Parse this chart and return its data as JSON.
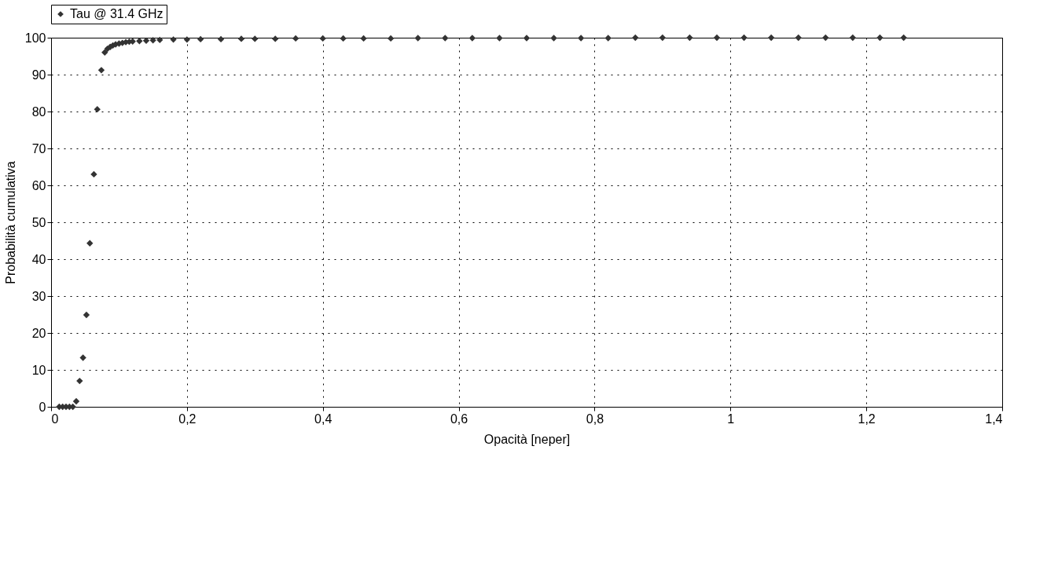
{
  "chart_data": {
    "type": "scatter",
    "xlabel": "Opacità [neper]",
    "ylabel": "Probabilità cumulativa",
    "xlim": [
      0,
      1.4
    ],
    "ylim": [
      0,
      100
    ],
    "xticks": [
      0,
      {
        "value": 0.2,
        "label": "0,2"
      },
      {
        "value": 0.4,
        "label": "0,4"
      },
      {
        "value": 0.6,
        "label": "0,6"
      },
      {
        "value": 0.8,
        "label": "0,8"
      },
      1,
      {
        "value": 1.2,
        "label": "1,2"
      },
      {
        "value": 1.4,
        "label": "1,4"
      }
    ],
    "yticks": [
      0,
      10,
      20,
      30,
      40,
      50,
      60,
      70,
      80,
      90,
      100
    ],
    "grid": true,
    "legend": "top",
    "marker": "diamond",
    "series": [
      {
        "name": "Tau @ 31.4 GHz",
        "color": "#333333",
        "x": [
          0.012,
          0.017,
          0.022,
          0.027,
          0.032,
          0.037,
          0.042,
          0.047,
          0.052,
          0.057,
          0.063,
          0.068,
          0.074,
          0.079,
          0.083,
          0.087,
          0.091,
          0.095,
          0.1,
          0.105,
          0.11,
          0.115,
          0.12,
          0.13,
          0.14,
          0.15,
          0.16,
          0.18,
          0.2,
          0.22,
          0.25,
          0.28,
          0.3,
          0.33,
          0.36,
          0.4,
          0.43,
          0.46,
          0.5,
          0.54,
          0.58,
          0.62,
          0.66,
          0.7,
          0.74,
          0.78,
          0.82,
          0.86,
          0.9,
          0.94,
          0.98,
          1.02,
          1.06,
          1.1,
          1.14,
          1.18,
          1.22,
          1.255
        ],
        "values": [
          0,
          0,
          0,
          0,
          0,
          1.5,
          7,
          13.3,
          24.9,
          44.3,
          63,
          80.6,
          91.2,
          96,
          97,
          97.5,
          97.9,
          98.2,
          98.4,
          98.6,
          98.8,
          98.9,
          99,
          99.1,
          99.2,
          99.3,
          99.4,
          99.5,
          99.5,
          99.6,
          99.6,
          99.7,
          99.7,
          99.7,
          99.8,
          99.8,
          99.8,
          99.8,
          99.8,
          99.9,
          99.9,
          99.9,
          99.9,
          99.9,
          99.9,
          99.9,
          99.9,
          100,
          100,
          100,
          100,
          100,
          100,
          100,
          100,
          100,
          100,
          100
        ]
      }
    ]
  }
}
